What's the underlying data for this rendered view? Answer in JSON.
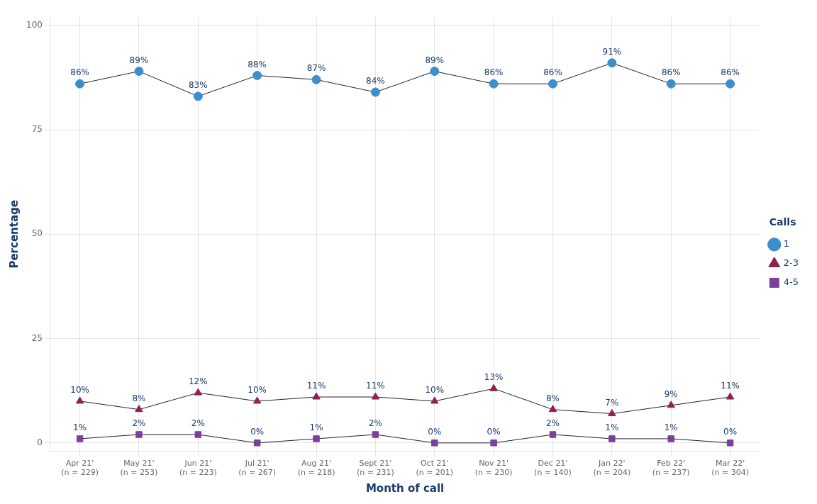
{
  "chart_data": {
    "type": "line",
    "categories": [
      "Apr 21'\n(n = 229)",
      "May 21'\n(n = 253)",
      "Jun 21'\n(n = 223)",
      "Jul 21'\n(n = 267)",
      "Aug 21'\n(n = 218)",
      "Sept 21'\n(n = 231)",
      "Oct 21'\n(n = 201)",
      "Nov 21'\n(n = 230)",
      "Dec 21'\n(n = 140)",
      "Jan 22'\n(n = 204)",
      "Feb 22'\n(n = 237)",
      "Mar 22'\n(n = 304)"
    ],
    "series": [
      {
        "name": "1",
        "color": "#3B8FCC",
        "marker": "circle",
        "line_style": "solid",
        "values": [
          86,
          89,
          83,
          88,
          87,
          84,
          89,
          86,
          86,
          91,
          86,
          86
        ],
        "value_labels": [
          "86%",
          "89%",
          "83%",
          "88%",
          "87%",
          "84%",
          "89%",
          "86%",
          "86%",
          "91%",
          "86%",
          "86%"
        ]
      },
      {
        "name": "2-3",
        "color": "#8B2252",
        "marker": "triangle",
        "line_style": "solid",
        "values": [
          10,
          8,
          12,
          10,
          11,
          11,
          10,
          13,
          8,
          7,
          9,
          11
        ],
        "value_labels": [
          "10%",
          "8%",
          "12%",
          "10%",
          "11%",
          "11%",
          "10%",
          "13%",
          "8%",
          "7%",
          "9%",
          "11%"
        ]
      },
      {
        "name": "4-5",
        "color": "#7B3F9E",
        "marker": "square",
        "line_style": "solid",
        "values": [
          1,
          2,
          2,
          0,
          1,
          2,
          0,
          0,
          2,
          1,
          1,
          0
        ],
        "value_labels": [
          "1%",
          "2%",
          "2%",
          "0%",
          "1%",
          "2%",
          "0%",
          "0%",
          "2%",
          "1%",
          "1%",
          "0%"
        ]
      }
    ],
    "color": "#222222",
    "xlabel": "Month of call",
    "ylabel": "Percentage",
    "ylim": [
      -2,
      102
    ],
    "yticks": [
      0,
      25,
      50,
      75,
      100
    ],
    "legend_title": "Calls",
    "legend": "right",
    "grid": true,
    "data_labels": true
  }
}
